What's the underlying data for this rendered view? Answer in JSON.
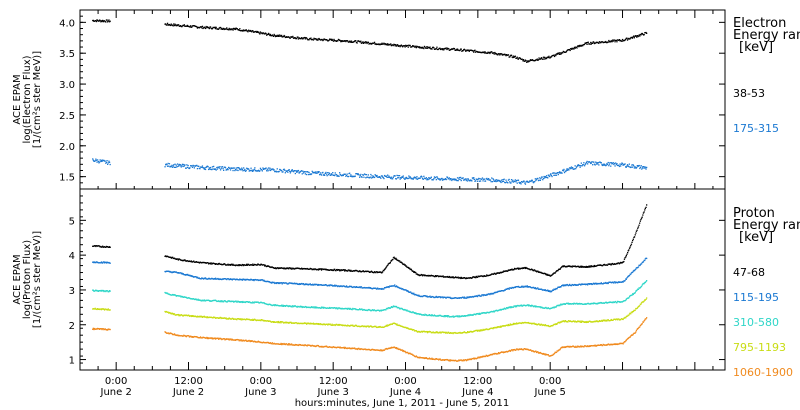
{
  "chart_data": [
    {
      "type": "scatter",
      "panel": "electron",
      "ylabel_lines": [
        "ACE EPAM",
        "log(Electron Flux)",
        "[1/(cm²s ster MeV)]"
      ],
      "ylim": [
        1.3,
        4.2
      ],
      "yticks": [
        1.5,
        2.0,
        2.5,
        3.0,
        3.5,
        4.0
      ],
      "ytick_labels": [
        "1.5",
        "2.0",
        "2.5",
        "3.0",
        "3.5",
        "4.0"
      ],
      "legend_title_lines": [
        "Electron",
        "Energy ran",
        "[keV]"
      ],
      "x_hours": [
        -4,
        -1,
        3,
        8,
        14,
        20,
        26,
        32,
        38,
        44,
        50,
        56,
        62,
        66,
        68,
        72,
        78,
        84,
        88
      ],
      "series": [
        {
          "name": "38-53",
          "color": "#000000",
          "segments": [
            [
              0,
              2
            ],
            [
              3,
              18
            ]
          ],
          "values": [
            4.04,
            4.03,
            null,
            3.98,
            3.93,
            3.9,
            3.8,
            3.74,
            3.71,
            3.66,
            3.61,
            3.57,
            3.52,
            3.45,
            3.38,
            3.45,
            3.67,
            3.72,
            3.84
          ]
        },
        {
          "name": "175-315",
          "color": "#1a78d2",
          "segments": [
            [
              0,
              2
            ],
            [
              3,
              18
            ]
          ],
          "values": [
            1.78,
            1.73,
            null,
            1.7,
            1.66,
            1.63,
            1.62,
            1.57,
            1.54,
            1.51,
            1.49,
            1.47,
            1.46,
            1.43,
            1.41,
            1.53,
            1.73,
            1.7,
            1.65
          ]
        }
      ]
    },
    {
      "type": "scatter",
      "panel": "proton",
      "ylabel_lines": [
        "ACE EPAM",
        "log(Proton Flux)",
        "[1/(cm²s ster MeV)]"
      ],
      "ylim": [
        0.7,
        5.9
      ],
      "yticks": [
        1,
        2,
        3,
        4,
        5
      ],
      "ytick_labels": [
        "1",
        "2",
        "3",
        "4",
        "5"
      ],
      "legend_title_lines": [
        "Proton",
        "Energy ran",
        "[keV]"
      ],
      "xtick_labels": [
        [
          "0:00",
          "June 2"
        ],
        [
          "12:00",
          "June 2"
        ],
        [
          "0:00",
          "June 3"
        ],
        [
          "12:00",
          "June 3"
        ],
        [
          "0:00",
          "June 4"
        ],
        [
          "12:00",
          "June 4"
        ],
        [
          "0:00",
          "June 5"
        ]
      ],
      "xlabel": "hours:minutes, June  1, 2011 - June  5, 2011",
      "xlim": [
        -6,
        101
      ],
      "x_hours": [
        -4,
        -1,
        3,
        8,
        10,
        14,
        20,
        24,
        26,
        32,
        38,
        44,
        46,
        50,
        56,
        58,
        62,
        66,
        68,
        72,
        74,
        78,
        84,
        86,
        88
      ],
      "series": [
        {
          "name": "47-68",
          "color": "#000000",
          "segments": [
            [
              0,
              2
            ],
            [
              3,
              24
            ]
          ],
          "values": [
            4.28,
            4.25,
            null,
            4.0,
            3.9,
            3.8,
            3.73,
            3.75,
            3.65,
            3.62,
            3.58,
            3.52,
            3.95,
            3.45,
            3.38,
            3.35,
            3.45,
            3.62,
            3.65,
            3.42,
            3.7,
            3.68,
            3.8,
            4.6,
            5.5
          ]
        },
        {
          "name": "115-195",
          "color": "#1a78d2",
          "segments": [
            [
              0,
              2
            ],
            [
              3,
              24
            ]
          ],
          "values": [
            3.82,
            3.8,
            null,
            3.55,
            3.52,
            3.35,
            3.32,
            3.3,
            3.22,
            3.18,
            3.12,
            3.05,
            3.15,
            2.85,
            2.78,
            2.8,
            2.9,
            3.1,
            3.12,
            2.98,
            3.15,
            3.18,
            3.25,
            3.6,
            3.95
          ]
        },
        {
          "name": "310-580",
          "color": "#2fd6c8",
          "segments": [
            [
              0,
              2
            ],
            [
              3,
              24
            ]
          ],
          "values": [
            3.0,
            2.98,
            null,
            2.93,
            2.85,
            2.72,
            2.68,
            2.65,
            2.58,
            2.52,
            2.48,
            2.42,
            2.55,
            2.32,
            2.25,
            2.28,
            2.38,
            2.55,
            2.58,
            2.48,
            2.62,
            2.62,
            2.68,
            2.95,
            3.3
          ]
        },
        {
          "name": "795-1193",
          "color": "#c8dc14",
          "segments": [
            [
              0,
              2
            ],
            [
              3,
              24
            ]
          ],
          "values": [
            2.48,
            2.45,
            null,
            2.4,
            2.3,
            2.25,
            2.18,
            2.15,
            2.1,
            2.05,
            2.0,
            1.95,
            2.05,
            1.82,
            1.78,
            1.8,
            1.9,
            2.05,
            2.08,
            1.98,
            2.12,
            2.1,
            2.18,
            2.45,
            2.8
          ]
        },
        {
          "name": "1060-1900",
          "color": "#f08a1e",
          "segments": [
            [
              0,
              2
            ],
            [
              3,
              24
            ]
          ],
          "values": [
            1.9,
            1.88,
            null,
            1.8,
            1.72,
            1.65,
            1.58,
            1.52,
            1.48,
            1.42,
            1.35,
            1.28,
            1.38,
            1.08,
            0.98,
            1.0,
            1.15,
            1.3,
            1.32,
            1.12,
            1.38,
            1.4,
            1.48,
            1.8,
            2.25
          ]
        }
      ]
    }
  ]
}
